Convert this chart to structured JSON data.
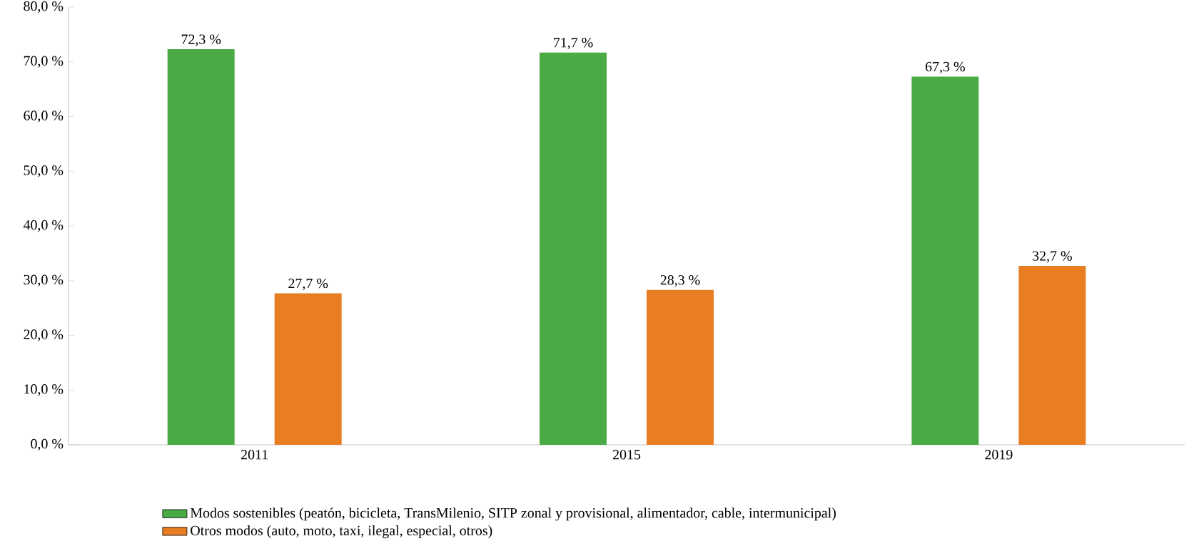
{
  "chart_data": {
    "type": "bar",
    "categories": [
      "2011",
      "2015",
      "2019"
    ],
    "series": [
      {
        "name": "Modos sostenibles (peatón, bicicleta, TransMilenio, SITP zonal y provisional, alimentador, cable, intermunicipal)",
        "color": "#4aab45",
        "values": [
          72.3,
          71.7,
          67.3
        ],
        "value_labels": [
          "72,3 %",
          "71,7 %",
          "67,3 %"
        ]
      },
      {
        "name": "Otros modos (auto, moto, taxi, ilegal, especial, otros)",
        "color": "#e87d22",
        "values": [
          27.7,
          28.3,
          32.7
        ],
        "value_labels": [
          "27,7 %",
          "28,3 %",
          "32,7 %"
        ]
      }
    ],
    "ylim": [
      0,
      80
    ],
    "yticks": [
      {
        "value": 0,
        "label": "0,0 %"
      },
      {
        "value": 10,
        "label": "10,0 %"
      },
      {
        "value": 20,
        "label": "20,0 %"
      },
      {
        "value": 30,
        "label": "30,0 %"
      },
      {
        "value": 40,
        "label": "40,0 %"
      },
      {
        "value": 50,
        "label": "50,0 %"
      },
      {
        "value": 60,
        "label": "60,0 %"
      },
      {
        "value": 70,
        "label": "70,0 %"
      },
      {
        "value": 80,
        "label": "80,0 %"
      }
    ],
    "grid": false,
    "legend": "bottom"
  }
}
